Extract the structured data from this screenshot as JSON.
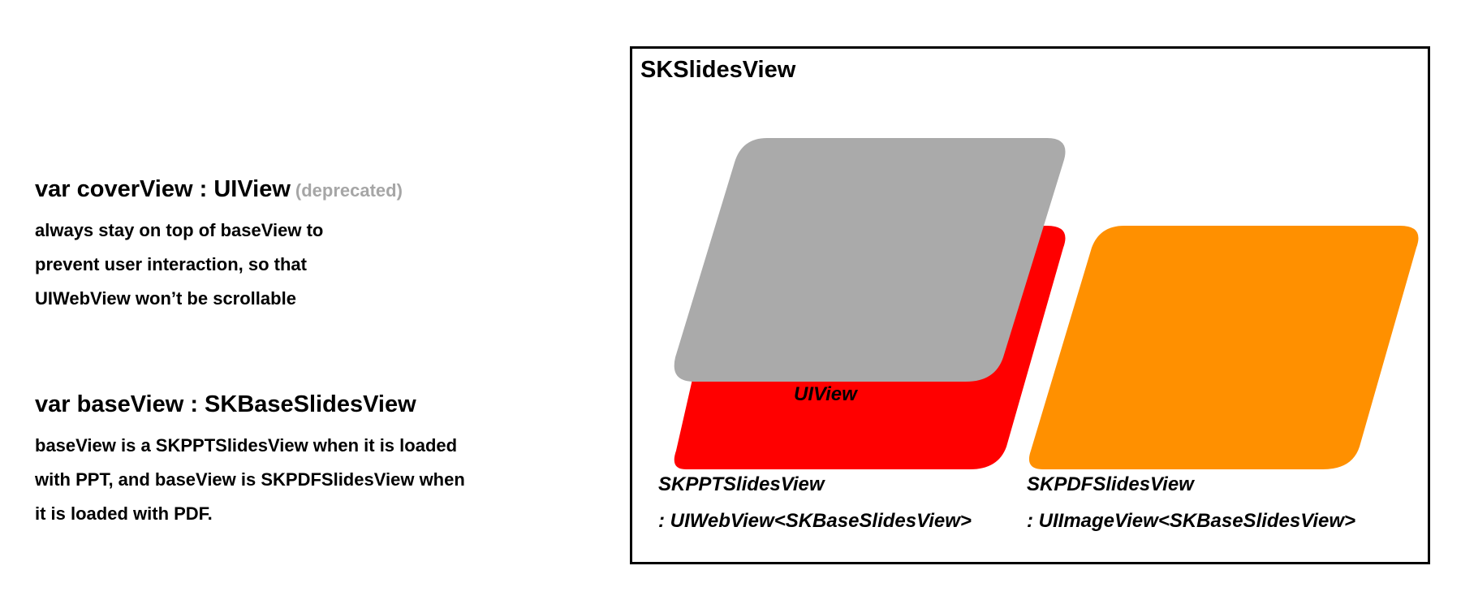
{
  "left_panel": {
    "cover": {
      "heading": "var coverView : UIView",
      "deprecated": "(deprecated)",
      "lines": [
        "always stay on top of baseView to",
        "prevent user interaction, so that",
        "UIWebView won’t be scrollable"
      ]
    },
    "base": {
      "heading": "var baseView : SKBaseSlidesView",
      "lines": [
        "baseView is a SKPPTSlidesView when it is loaded",
        "with PPT, and baseView is SKPDFSlidesView when",
        "it is loaded with PDF."
      ]
    }
  },
  "diagram": {
    "title": "SKSlidesView",
    "uiview_label": "UIView",
    "ppt_label_1": "SKPPTSlidesView",
    "ppt_label_2": ": UIWebView<SKBaseSlidesView>",
    "pdf_label_1": "SKPDFSlidesView",
    "pdf_label_2": ": UIImageView<SKBaseSlidesView>",
    "colors": {
      "cover": "#aaaaaa",
      "ppt": "#ff0000",
      "pdf": "#ff9000"
    }
  }
}
